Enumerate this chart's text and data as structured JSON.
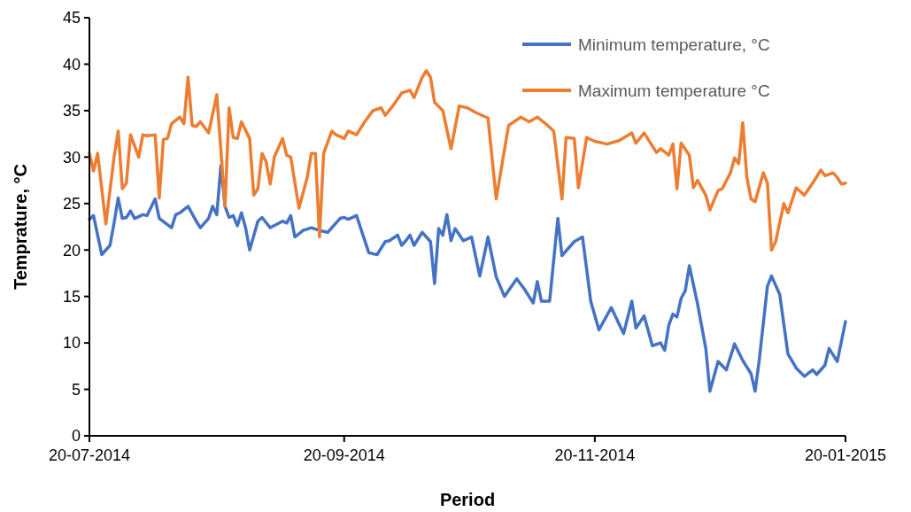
{
  "chart_data": {
    "type": "line",
    "xlabel": "Period",
    "ylabel": "Temprature, °C",
    "xlim": [
      "2014-07-20",
      "2015-01-20"
    ],
    "xticks": [
      {
        "value": "2014-07-20",
        "label": "20-07-2014"
      },
      {
        "value": "2014-09-20",
        "label": "20-09-2014"
      },
      {
        "value": "2014-11-20",
        "label": "20-11-2014"
      },
      {
        "value": "2015-01-20",
        "label": "20-01-2015"
      }
    ],
    "ylim": [
      0,
      45
    ],
    "yticks": [
      0,
      5,
      10,
      15,
      20,
      25,
      30,
      35,
      40,
      45
    ],
    "grid": false,
    "legend": "top right",
    "line_style": "solid",
    "marker": "none",
    "series": [
      {
        "name": "Minimum temperature, °C",
        "color": "#4472c4",
        "x": [
          "2014-07-20",
          "2014-07-21",
          "2014-07-23",
          "2014-07-25",
          "2014-07-26",
          "2014-07-27",
          "2014-07-28",
          "2014-07-29",
          "2014-07-30",
          "2014-07-31",
          "2014-08-02",
          "2014-08-03",
          "2014-08-05",
          "2014-08-06",
          "2014-08-09",
          "2014-08-10",
          "2014-08-11",
          "2014-08-13",
          "2014-08-15",
          "2014-08-16",
          "2014-08-18",
          "2014-08-19",
          "2014-08-20",
          "2014-08-21",
          "2014-08-22",
          "2014-08-23",
          "2014-08-24",
          "2014-08-25",
          "2014-08-26",
          "2014-08-27",
          "2014-08-28",
          "2014-08-30",
          "2014-08-31",
          "2014-09-02",
          "2014-09-05",
          "2014-09-06",
          "2014-09-07",
          "2014-09-08",
          "2014-09-10",
          "2014-09-12",
          "2014-09-14",
          "2014-09-16",
          "2014-09-19",
          "2014-09-20",
          "2014-09-21",
          "2014-09-23",
          "2014-09-26",
          "2014-09-28",
          "2014-09-30",
          "2014-10-01",
          "2014-10-03",
          "2014-10-04",
          "2014-10-05",
          "2014-10-06",
          "2014-10-07",
          "2014-10-09",
          "2014-10-11",
          "2014-10-12",
          "2014-10-13",
          "2014-10-14",
          "2014-10-15",
          "2014-10-16",
          "2014-10-17",
          "2014-10-19",
          "2014-10-21",
          "2014-10-23",
          "2014-10-25",
          "2014-10-27",
          "2014-10-29",
          "2014-11-01",
          "2014-11-03",
          "2014-11-05",
          "2014-11-06",
          "2014-11-07",
          "2014-11-09",
          "2014-11-11",
          "2014-11-12",
          "2014-11-15",
          "2014-11-17",
          "2014-11-19",
          "2014-11-21",
          "2014-11-24",
          "2014-11-27",
          "2014-11-29",
          "2014-11-30",
          "2014-12-02",
          "2014-12-04",
          "2014-12-06",
          "2014-12-07",
          "2014-12-08",
          "2014-12-09",
          "2014-12-10",
          "2014-12-11",
          "2014-12-12",
          "2014-12-13",
          "2014-12-15",
          "2014-12-17",
          "2014-12-18",
          "2014-12-20",
          "2014-12-22",
          "2014-12-24",
          "2014-12-26",
          "2014-12-28",
          "2014-12-29",
          "2014-12-30",
          "2015-01-01",
          "2015-01-02",
          "2015-01-04",
          "2015-01-06",
          "2015-01-08",
          "2015-01-10",
          "2015-01-12",
          "2015-01-13",
          "2015-01-15",
          "2015-01-16",
          "2015-01-18",
          "2015-01-20"
        ],
        "values": [
          23.3,
          23.7,
          19.5,
          20.5,
          22.9,
          25.6,
          23.4,
          23.5,
          24.2,
          23.4,
          23.8,
          23.7,
          25.5,
          23.4,
          22.4,
          23.8,
          24,
          24.7,
          23.1,
          22.4,
          23.4,
          24.7,
          23.8,
          29.1,
          24.7,
          23.5,
          23.7,
          22.6,
          24,
          22.4,
          20,
          23.1,
          23.5,
          22.4,
          23.1,
          22.9,
          23.7,
          21.4,
          22.1,
          22.4,
          22.1,
          21.9,
          23.4,
          23.5,
          23.3,
          23.7,
          19.7,
          19.5,
          20.9,
          21,
          21.6,
          20.5,
          21,
          21.6,
          20.5,
          21.9,
          20.9,
          16.4,
          22.3,
          21.6,
          23.8,
          21,
          22.3,
          21,
          21.4,
          17.2,
          21.4,
          17.1,
          15,
          16.9,
          15.7,
          14.3,
          16.6,
          14.5,
          14.5,
          23.4,
          19.4,
          20.9,
          21.4,
          14.5,
          11.4,
          13.8,
          11,
          14.5,
          11.6,
          12.9,
          9.7,
          10,
          9.2,
          11.9,
          13.1,
          12.8,
          14.8,
          15.6,
          18.3,
          14.2,
          9.4,
          4.8,
          8,
          7.1,
          9.9,
          8.1,
          6.7,
          4.8,
          8.1,
          16.1,
          17.2,
          15.2,
          8.8,
          7.3,
          6.4,
          7.1,
          6.6,
          7.6,
          9.4,
          8,
          12.3
        ]
      },
      {
        "name": "Maximum temperature °C",
        "color": "#ed7d31",
        "x": [
          "2014-07-20",
          "2014-07-21",
          "2014-07-22",
          "2014-07-24",
          "2014-07-26",
          "2014-07-27",
          "2014-07-28",
          "2014-07-29",
          "2014-07-30",
          "2014-08-01",
          "2014-08-02",
          "2014-08-03",
          "2014-08-05",
          "2014-08-06",
          "2014-08-07",
          "2014-08-08",
          "2014-08-09",
          "2014-08-11",
          "2014-08-12",
          "2014-08-13",
          "2014-08-14",
          "2014-08-15",
          "2014-08-16",
          "2014-08-18",
          "2014-08-20",
          "2014-08-22",
          "2014-08-23",
          "2014-08-24",
          "2014-08-25",
          "2014-08-26",
          "2014-08-28",
          "2014-08-29",
          "2014-08-30",
          "2014-08-31",
          "2014-09-01",
          "2014-09-02",
          "2014-09-03",
          "2014-09-05",
          "2014-09-06",
          "2014-09-07",
          "2014-09-09",
          "2014-09-11",
          "2014-09-12",
          "2014-09-13",
          "2014-09-14",
          "2014-09-15",
          "2014-09-17",
          "2014-09-18",
          "2014-09-20",
          "2014-09-21",
          "2014-09-23",
          "2014-09-25",
          "2014-09-27",
          "2014-09-29",
          "2014-09-30",
          "2014-10-02",
          "2014-10-04",
          "2014-10-06",
          "2014-10-07",
          "2014-10-09",
          "2014-10-10",
          "2014-10-11",
          "2014-10-12",
          "2014-10-14",
          "2014-10-16",
          "2014-10-18",
          "2014-10-20",
          "2014-10-22",
          "2014-10-25",
          "2014-10-27",
          "2014-10-30",
          "2014-11-02",
          "2014-11-04",
          "2014-11-06",
          "2014-11-08",
          "2014-11-10",
          "2014-11-12",
          "2014-11-13",
          "2014-11-15",
          "2014-11-16",
          "2014-11-18",
          "2014-11-20",
          "2014-11-23",
          "2014-11-26",
          "2014-11-29",
          "2014-11-30",
          "2014-12-02",
          "2014-12-05",
          "2014-12-06",
          "2014-12-08",
          "2014-12-09",
          "2014-12-10",
          "2014-12-11",
          "2014-12-13",
          "2014-12-14",
          "2014-12-15",
          "2014-12-17",
          "2014-12-18",
          "2014-12-20",
          "2014-12-21",
          "2014-12-23",
          "2014-12-24",
          "2014-12-25",
          "2014-12-26",
          "2014-12-27",
          "2014-12-28",
          "2014-12-29",
          "2014-12-31",
          "2015-01-01",
          "2015-01-02",
          "2015-01-03",
          "2015-01-05",
          "2015-01-06",
          "2015-01-08",
          "2015-01-10",
          "2015-01-12",
          "2015-01-14",
          "2015-01-15",
          "2015-01-17",
          "2015-01-18",
          "2015-01-19",
          "2015-01-20"
        ],
        "values": [
          30.4,
          28.5,
          30.4,
          22.8,
          30,
          32.8,
          26.6,
          27.2,
          32.4,
          30,
          32.4,
          32.3,
          32.4,
          25.6,
          31.9,
          32,
          33.6,
          34.3,
          33.6,
          38.6,
          33.4,
          33.3,
          33.8,
          32.6,
          36.7,
          24.7,
          35.3,
          32.1,
          32,
          33.8,
          32,
          25.9,
          26.6,
          30.4,
          29.5,
          27.1,
          30,
          32,
          30.2,
          30,
          24.5,
          27.8,
          30.4,
          30.4,
          21.4,
          30.4,
          32.8,
          32.4,
          32,
          32.8,
          32.4,
          33.8,
          35,
          35.3,
          34.5,
          35.6,
          36.9,
          37.2,
          36.4,
          38.6,
          39.3,
          38.6,
          35.9,
          35,
          30.9,
          35.5,
          35.3,
          34.8,
          34.2,
          25.5,
          33.4,
          34.3,
          33.8,
          34.3,
          33.6,
          32.8,
          25.5,
          32.1,
          32,
          26.7,
          32.1,
          31.7,
          31.4,
          31.8,
          32.6,
          31.5,
          32.6,
          30.5,
          30.9,
          30.2,
          31.4,
          26.6,
          31.5,
          30.2,
          26.7,
          27.5,
          25.9,
          24.3,
          26.4,
          26.6,
          28.3,
          29.9,
          29.3,
          33.7,
          27.8,
          25.5,
          25.2,
          28.3,
          27.2,
          20,
          20.9,
          25,
          24,
          26.7,
          25.9,
          27.2,
          28.6,
          28,
          28.3,
          27.8,
          27.1,
          27.2
        ]
      }
    ]
  }
}
